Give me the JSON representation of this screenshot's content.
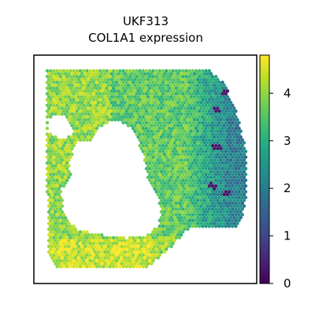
{
  "chart_data": {
    "type": "heatmap",
    "subtype": "spatial-transcriptomics-spot-map",
    "title_lines": [
      "UKF313",
      "COL1A1 expression"
    ],
    "xlabel": "",
    "ylabel": "",
    "colormap": "viridis",
    "colorbar": {
      "range": [
        0,
        4.8
      ],
      "ticks": [
        0,
        1,
        2,
        3,
        4
      ],
      "tick_labels": [
        "0",
        "1",
        "2",
        "3",
        "4"
      ],
      "placement": "right"
    },
    "regions": [
      {
        "name": "left-and-bottom-tissue",
        "typical_expression": 4.0
      },
      {
        "name": "upper-middle-tissue",
        "typical_expression": 3.4
      },
      {
        "name": "right-edge-tissue",
        "typical_expression": 2.0
      },
      {
        "name": "low-expression-foci",
        "typical_expression": 0.3
      }
    ],
    "grid": false,
    "axes_ticks": false
  }
}
